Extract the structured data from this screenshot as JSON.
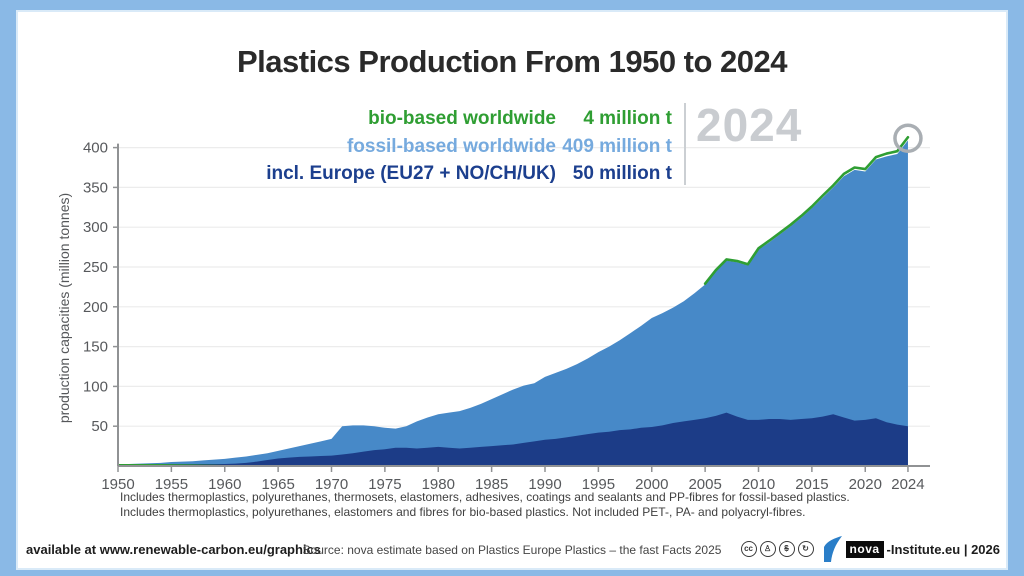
{
  "title": "Plastics Production From 1950 to 2024",
  "legend": {
    "items": [
      {
        "label": "bio-based worldwide",
        "value": "4 million t",
        "color": "#2f9e33"
      },
      {
        "label": "fossil-based worldwide",
        "value": "409 million t",
        "color": "#76aade"
      },
      {
        "label": "incl. Europe (EU27 + NO/CH/UK)",
        "value": "50 million t",
        "color": "#1c3f8e"
      }
    ],
    "year_badge": "2024"
  },
  "chart_data": {
    "type": "area",
    "title": "Plastics Production From 1950 to 2024",
    "xlabel": "",
    "ylabel": "production capacities (million tonnes)",
    "ylim": [
      0,
      400
    ],
    "yticks": [
      50,
      100,
      150,
      200,
      250,
      300,
      350,
      400
    ],
    "xticks": [
      1950,
      1955,
      1960,
      1965,
      1970,
      1975,
      1980,
      1985,
      1990,
      1995,
      2000,
      2005,
      2010,
      2015,
      2020,
      2024
    ],
    "x_start": 1950,
    "x_end": 2024,
    "grid": "horizontal",
    "legend_position": "top-right",
    "colors": {
      "fossil_fill": "#4789c8",
      "europe_fill": "#1c3c87",
      "bio_line": "#2f9e33",
      "grid": "#ececec",
      "axis": "#909294",
      "marker_ring": "#a9aeb3"
    },
    "series": [
      {
        "name": "fossil-based worldwide",
        "unit": "million tonnes",
        "values_2024_label": 409,
        "values": [
          2,
          2.5,
          3,
          3.5,
          4,
          5,
          5.5,
          6,
          7,
          8,
          9,
          10.5,
          12,
          14,
          16,
          19,
          22,
          25,
          28,
          31,
          34,
          50,
          51,
          51,
          50,
          48,
          47,
          50,
          56,
          61,
          65,
          67,
          69,
          73,
          78,
          84,
          90,
          96,
          101,
          104,
          112,
          117,
          122,
          128,
          135,
          143,
          150,
          158,
          167,
          176,
          186,
          192,
          199,
          207,
          217,
          228,
          245,
          258,
          256,
          252,
          272,
          281,
          291,
          301,
          312,
          324,
          337,
          350,
          364,
          372,
          370,
          385,
          389,
          392,
          409
        ]
      },
      {
        "name": "incl. Europe (EU27 + NO/CH/UK)",
        "unit": "million tonnes",
        "values_2024_label": 50,
        "values": [
          0.5,
          0.6,
          0.8,
          1,
          1.2,
          1.4,
          1.6,
          1.8,
          2,
          2.2,
          2.5,
          3,
          4,
          5.5,
          7.5,
          9.5,
          10.5,
          11.5,
          12,
          12.5,
          13,
          14.5,
          16,
          18,
          20,
          21,
          23,
          23,
          22,
          23,
          24,
          23,
          22,
          23,
          24,
          25,
          26,
          27,
          29,
          31,
          33,
          34,
          36,
          38,
          40,
          42,
          43,
          45,
          46,
          48,
          49,
          51,
          54,
          56,
          58,
          60,
          63,
          67,
          62,
          58,
          58,
          59,
          59,
          58,
          59,
          60,
          62,
          65,
          61,
          57,
          58,
          60,
          55,
          52,
          50
        ]
      },
      {
        "name": "bio-based worldwide",
        "unit": "million tonnes",
        "values_2024_label": 4,
        "early_segment": {
          "year_start": 1950,
          "year_end": 1962,
          "value": 1
        },
        "stacked_from": 2005,
        "stacked_values": [
          1,
          1,
          1.5,
          1.5,
          1.5,
          1.5,
          2,
          2,
          2,
          2,
          2,
          2.5,
          2.5,
          3,
          3,
          3,
          3,
          3.5,
          3.5,
          4
        ]
      }
    ],
    "annotations": {
      "year_label": "2024",
      "end_marker": "circle-ring at 2024 total (413)"
    }
  },
  "footnotes": {
    "line1": "Includes thermoplastics, polyurethanes, thermosets, elastomers, adhesives, coatings and sealants and PP-fibres for fossil-based plastics.",
    "line2": "Includes thermoplastics, polyurethanes, elastomers and fibres for bio-based plastics. Not included PET-, PA- and polyacryl-fibres."
  },
  "footer": {
    "available": "available at www.renewable-carbon.eu/graphics",
    "source": "Source: nova estimate based on Plastics Europe Plastics – the fast Facts 2025",
    "license_glyphs": [
      "cc",
      "♙",
      "$",
      "↻"
    ],
    "brand_name": "nova",
    "brand_suffix": "-Institute.eu | 2026",
    "brand_color": "#2a7ec8"
  }
}
